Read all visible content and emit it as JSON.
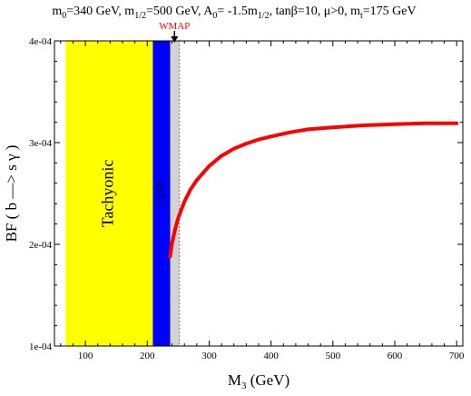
{
  "chart_data": {
    "type": "line",
    "title_parts": {
      "m0": "m",
      "m0_sub": "0",
      "m0_val": "=340 GeV, m",
      "mhalf_sub": "1/2",
      "mhalf_val": "=500 GeV, A",
      "a0_sub": "0",
      "a0_val": "= -1.5m",
      "a0_sub2": "1/2",
      "tail": ", tanβ=10, μ>0, m",
      "mt_sub": "t",
      "mt_val": "=175 GeV"
    },
    "xlabel_main": "M",
    "xlabel_sub": "3",
    "xlabel_unit": " (GeV)",
    "ylabel": "BF ( b —> s γ )",
    "xlim": [
      50,
      710
    ],
    "ylim": [
      0.0001,
      0.0004
    ],
    "x_ticks": [
      100,
      200,
      300,
      400,
      500,
      600,
      700
    ],
    "x_tick_labels": [
      "100",
      "200",
      "300",
      "400",
      "500",
      "600",
      "700"
    ],
    "y_ticks": [
      0.0001,
      0.0002,
      0.0003,
      0.0004
    ],
    "y_tick_labels": [
      "1e-04",
      "2e-04",
      "3e-04",
      "4e-04"
    ],
    "regions": [
      {
        "label": "Tachyonic",
        "x0": 68,
        "x1": 209,
        "color": "#ffff00"
      },
      {
        "label": "τ̃ LSP",
        "x0": 209,
        "x1": 237,
        "color": "#0000ff"
      },
      {
        "label": "",
        "x0": 237,
        "x1": 252,
        "color": "#d3d3d3"
      }
    ],
    "annotation": {
      "text": "WMAP",
      "x": 244,
      "color": "#ff0000"
    },
    "series": [
      {
        "color": "#ff0000",
        "x": [
          237,
          240,
          245,
          250,
          260,
          270,
          280,
          300,
          320,
          340,
          360,
          380,
          400,
          430,
          460,
          500,
          550,
          600,
          650,
          700
        ],
        "y": [
          0.000188,
          0.000201,
          0.000215,
          0.000226,
          0.000242,
          0.000254,
          0.000263,
          0.000277,
          0.000287,
          0.000294,
          0.000299,
          0.000303,
          0.000306,
          0.00031,
          0.000313,
          0.000315,
          0.000317,
          0.000318,
          0.000319,
          0.000319
        ]
      }
    ]
  }
}
